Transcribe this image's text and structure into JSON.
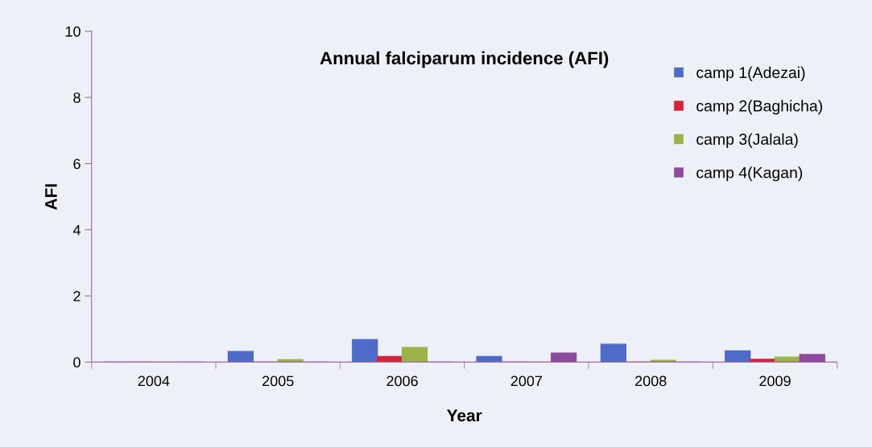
{
  "chart_data": {
    "type": "bar",
    "title": "Annual falciparum incidence (AFI)",
    "xlabel": "Year",
    "ylabel": "AFI",
    "categories": [
      "2004",
      "2005",
      "2006",
      "2007",
      "2008",
      "2009"
    ],
    "series": [
      {
        "name": "camp 1(Adezai)",
        "color": "#4f6bc8",
        "values": [
          0,
          0.32,
          0.68,
          0.17,
          0.54,
          0.34
        ]
      },
      {
        "name": "camp 2(Baghicha)",
        "color": "#d8203a",
        "values": [
          0,
          0,
          0.17,
          0,
          0,
          0.08
        ]
      },
      {
        "name": "camp 3(Jalala)",
        "color": "#9ab347",
        "values": [
          0,
          0.07,
          0.44,
          0,
          0.05,
          0.15
        ]
      },
      {
        "name": "camp 4(Kagan)",
        "color": "#8e4a9c",
        "values": [
          0,
          0,
          0,
          0.27,
          0,
          0.23
        ]
      }
    ],
    "ylim": [
      0,
      10
    ],
    "yticks": [
      0,
      2,
      4,
      6,
      8,
      10
    ],
    "grid": false,
    "legend": "right"
  }
}
